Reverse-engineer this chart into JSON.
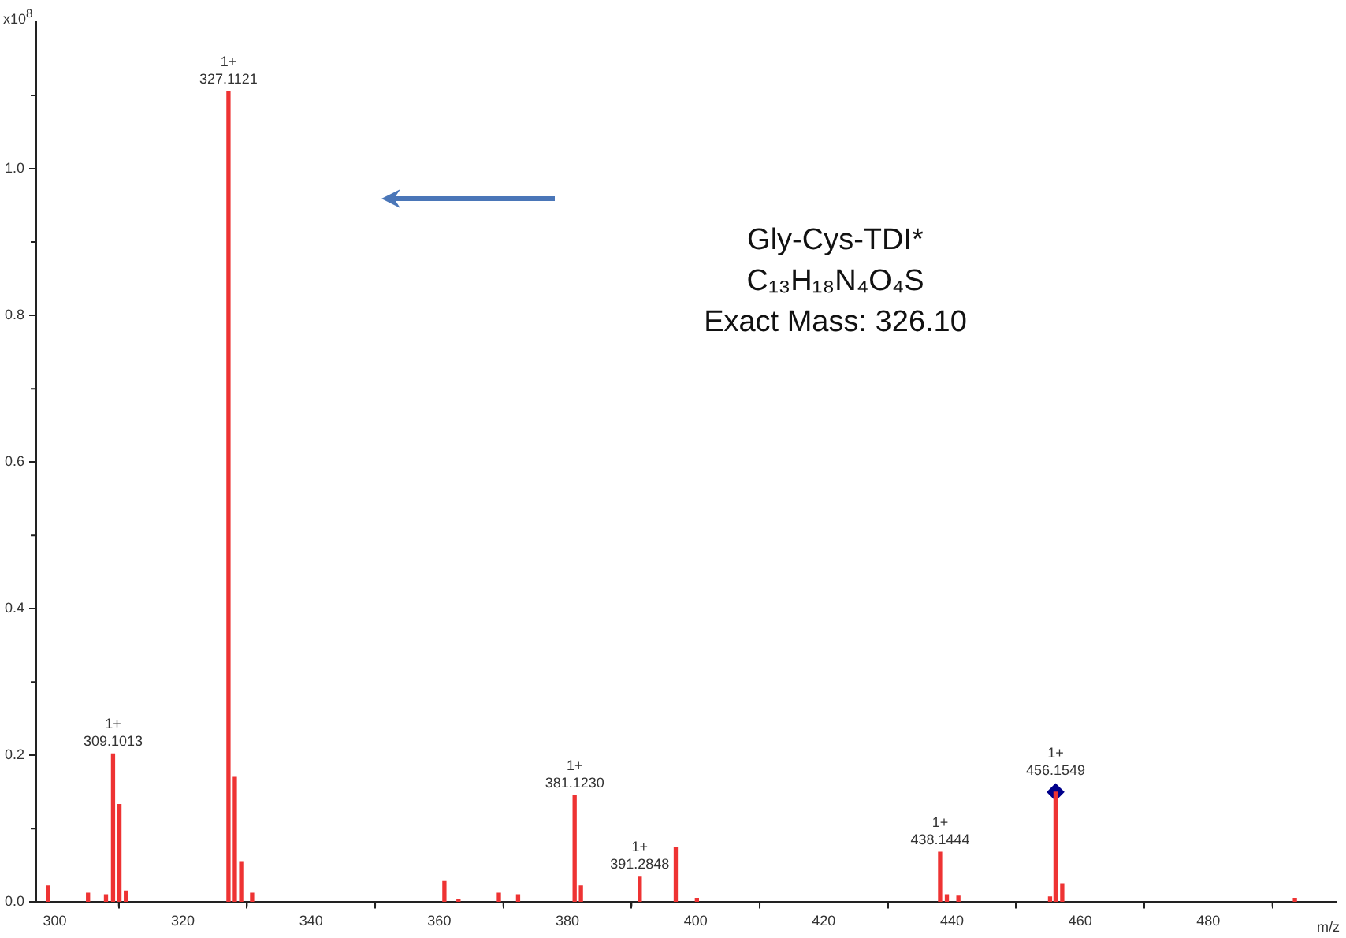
{
  "chart_data": {
    "type": "bar",
    "xlabel": "m/z",
    "ylabel": "x10$^{8}$",
    "xlim": [
      297,
      500
    ],
    "xticks": [
      300,
      {
        "value": 310,
        "label": null
      },
      320,
      {
        "value": 330,
        "label": null
      },
      340,
      {
        "value": 350,
        "label": null
      },
      360,
      {
        "value": 370,
        "label": null
      },
      380,
      {
        "value": 390,
        "label": null
      },
      400,
      {
        "value": 410,
        "label": null
      },
      420,
      {
        "value": 430,
        "label": null
      },
      440,
      {
        "value": 450,
        "label": null
      },
      460,
      {
        "value": 470,
        "label": null
      },
      480,
      {
        "value": 490,
        "label": null
      }
    ],
    "ylim": [
      0,
      1.2
    ],
    "yticks": [
      {
        "value": 0,
        "label": "0.0"
      },
      {
        "value": 0.1,
        "label": null
      },
      0.2,
      {
        "value": 0.3,
        "label": null
      },
      0.4,
      {
        "value": 0.5,
        "label": null
      },
      0.6,
      {
        "value": 0.7,
        "label": null
      },
      0.8,
      {
        "value": 0.9,
        "label": null
      },
      {
        "value": 1.0,
        "label": "1.0"
      },
      {
        "value": 1.1,
        "label": null
      }
    ],
    "series": [
      {
        "color": "#ee3333",
        "x": [
          299,
          305.2,
          308,
          309.1013,
          310.1,
          311.1,
          327.1121,
          328.1,
          329.1,
          330.8,
          360.8,
          363,
          369.3,
          372.3,
          381.123,
          382.1,
          391.2848,
          396.9,
          400.2,
          438.1444,
          439.2,
          441,
          455.3,
          456.1549,
          457.2,
          493.5
        ],
        "values": [
          0.022,
          0.012,
          0.01,
          0.202,
          0.133,
          0.015,
          1.105,
          0.17,
          0.055,
          0.012,
          0.028,
          0.004,
          0.012,
          0.01,
          0.145,
          0.022,
          0.035,
          0.075,
          0.005,
          0.068,
          0.01,
          0.008,
          0.007,
          0.15,
          0.025,
          0.005
        ]
      },
      {
        "type": "scatter",
        "color": "#00008b",
        "marker": "diamond",
        "x": [
          456.1549
        ],
        "values": [
          0.15
        ]
      }
    ],
    "annotations": [
      "Gly-Cys-TDI*",
      "C₁₃H₁₈N₄O₄S",
      "Exact Mass: 326.10",
      {
        "text": "1+\n309.1013",
        "x": 309.1013,
        "y": 0.202
      },
      {
        "text": "1+\n327.1121",
        "x": 327.1121,
        "y": 1.105
      },
      {
        "text": "1+\n381.1230",
        "x": 381.123,
        "y": 0.145
      },
      {
        "text": "1+\n391.2848",
        "x": 391.2848,
        "y": 0.035
      },
      {
        "text": "1+\n438.1444",
        "x": 438.1444,
        "y": 0.068
      },
      {
        "text": "1+\n456.1549",
        "x": 456.1549,
        "y": 0.15
      }
    ]
  }
}
